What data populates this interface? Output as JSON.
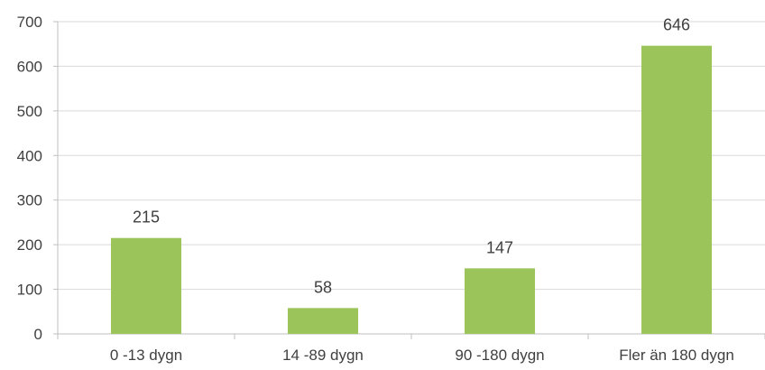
{
  "chart_data": {
    "type": "bar",
    "categories": [
      "0 -13 dygn",
      "14 -89 dygn",
      "90 -180 dygn",
      "Fler än 180 dygn"
    ],
    "values": [
      215,
      58,
      147,
      646
    ],
    "data_labels": [
      "215",
      "58",
      "147",
      "646"
    ],
    "title": "",
    "xlabel": "",
    "ylabel": "",
    "ylim": [
      0,
      700
    ],
    "yticks": [
      "0",
      "100",
      "200",
      "300",
      "400",
      "500",
      "600",
      "700"
    ],
    "grid": true,
    "legend": "none",
    "bar_color": "#9bc55b"
  }
}
